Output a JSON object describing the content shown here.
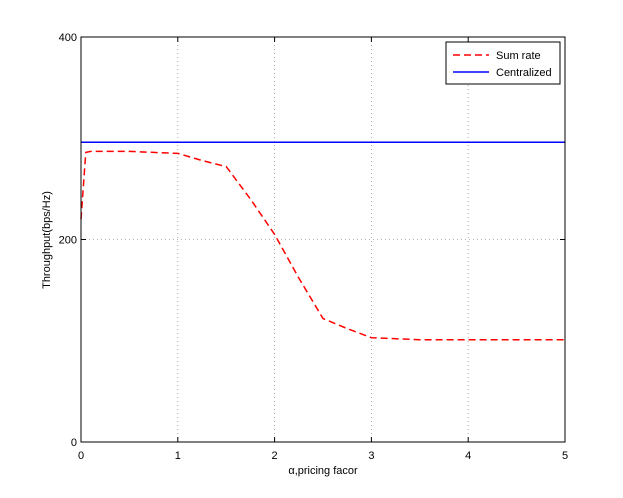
{
  "chart_data": {
    "type": "line",
    "title": "",
    "xlabel": "α,pricing facor",
    "ylabel": "Throughput(bps/Hz)",
    "xlim": [
      0,
      5
    ],
    "ylim": [
      0,
      400
    ],
    "xticks": [
      0,
      1,
      2,
      3,
      4,
      5
    ],
    "yticks": [
      0,
      200,
      400
    ],
    "xtick_labels": [
      "0",
      "1",
      "2",
      "3",
      "4",
      "5"
    ],
    "ytick_labels": [
      "0",
      "200",
      "400"
    ],
    "grid": true,
    "legend_position": "top-right",
    "series": [
      {
        "name": "Sum rate",
        "color": "#ff0000",
        "line_style": "dashed",
        "x": [
          0,
          0.05,
          0.1,
          0.25,
          0.5,
          0.75,
          1.0,
          1.25,
          1.5,
          1.75,
          2.0,
          2.25,
          2.5,
          2.75,
          3.0,
          3.5,
          4.0,
          4.5,
          5.0
        ],
        "y": [
          220,
          286,
          287,
          287,
          287,
          286,
          285,
          278,
          272,
          240,
          205,
          162,
          122,
          112,
          103,
          101,
          101,
          101,
          101
        ]
      },
      {
        "name": "Centralized",
        "color": "#0000ff",
        "line_style": "solid",
        "x": [
          0,
          5
        ],
        "y": [
          296,
          296
        ]
      }
    ]
  }
}
